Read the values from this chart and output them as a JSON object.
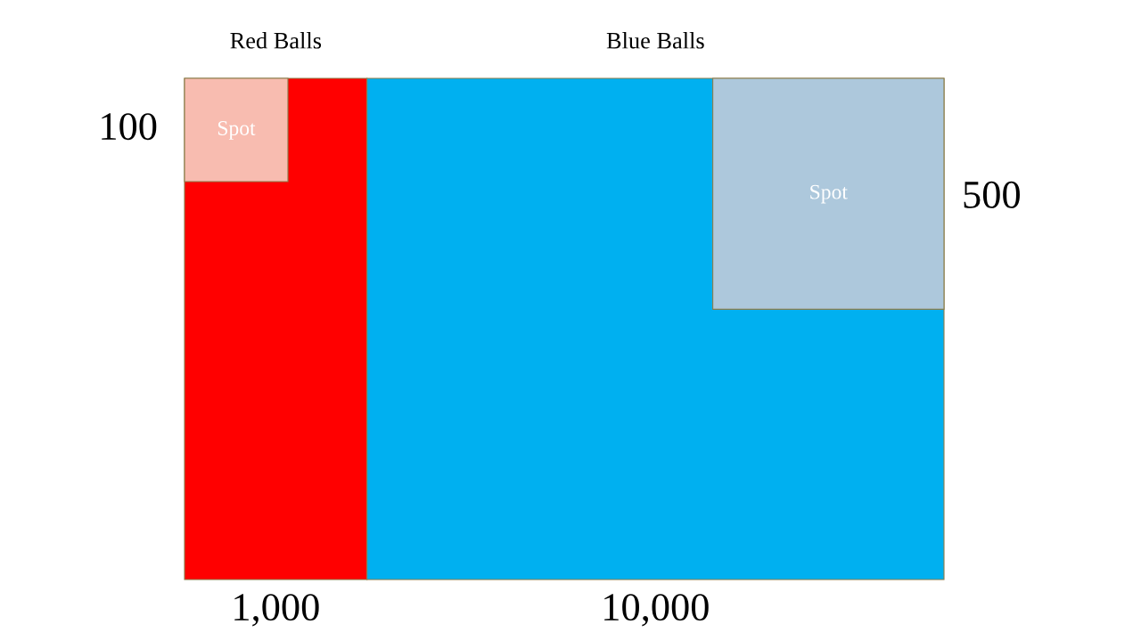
{
  "chart_data": {
    "type": "other",
    "categories": [
      "Red Balls",
      "Blue Balls"
    ],
    "series": [
      {
        "values": [
          1000,
          10000
        ],
        "value_labels": [
          "1,000",
          "10,000"
        ],
        "colors": [
          "#ff0000",
          "#00b0f0"
        ]
      },
      {
        "name": "Spot",
        "values": [
          100,
          500
        ],
        "value_labels": [
          "100",
          "500"
        ],
        "colors": [
          "#f8bcb0",
          "#adc8dc"
        ]
      }
    ]
  }
}
